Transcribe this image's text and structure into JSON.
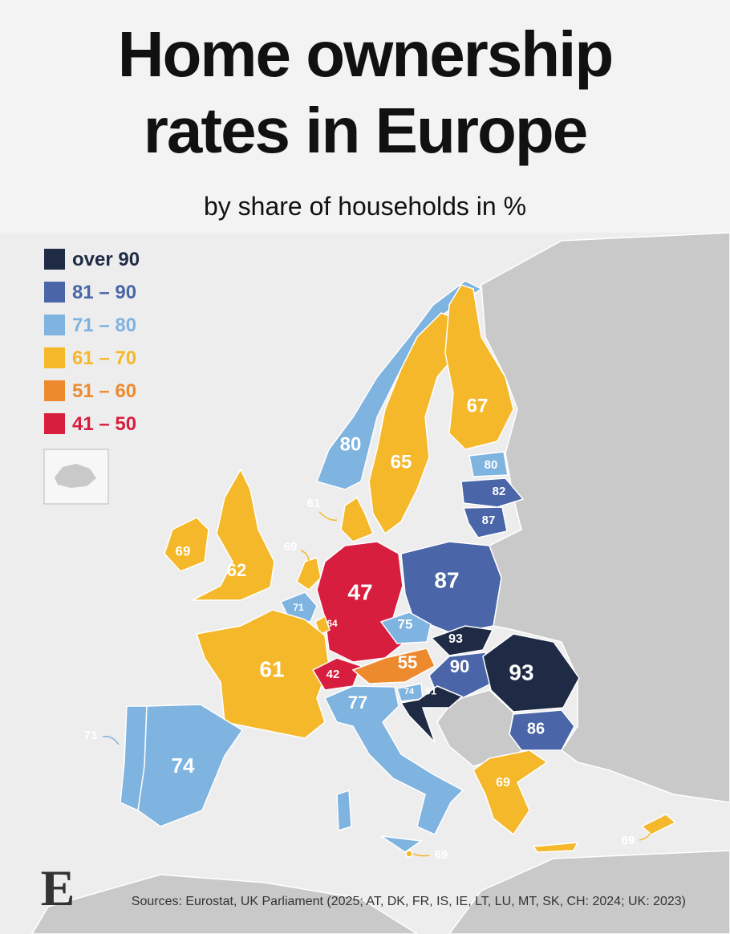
{
  "header": {
    "title_line1": "Home ownership",
    "title_line2": "rates in Europe",
    "subtitle": "by share of households in %"
  },
  "legend": [
    {
      "label": "over 90",
      "color": "#1f2a44"
    },
    {
      "label": "81 – 90",
      "color": "#4a66a8"
    },
    {
      "label": "71 – 80",
      "color": "#7fb3e0"
    },
    {
      "label": "61 – 70",
      "color": "#f4b82a"
    },
    {
      "label": "51 – 60",
      "color": "#ee8a2e"
    },
    {
      "label": "41 – 50",
      "color": "#d81e3f"
    }
  ],
  "map": {
    "labels": [
      {
        "value": 80,
        "color": "#7fb3e0"
      },
      {
        "value": 65,
        "color": "#f4b82a"
      },
      {
        "value": 67,
        "color": "#f4b82a"
      },
      {
        "value": 80,
        "color": "#7fb3e0"
      },
      {
        "value": 82,
        "color": "#4a66a8"
      },
      {
        "value": 87,
        "color": "#4a66a8"
      },
      {
        "value": 61,
        "color": "#f4b82a"
      },
      {
        "value": 69,
        "color": "#f4b82a"
      },
      {
        "value": 62,
        "color": "#f4b82a"
      },
      {
        "value": 69,
        "color": "#f4b82a"
      },
      {
        "value": 47,
        "color": "#d81e3f"
      },
      {
        "value": 87,
        "color": "#4a66a8"
      },
      {
        "value": 71,
        "color": "#7fb3e0"
      },
      {
        "value": 64,
        "color": "#f4b82a"
      },
      {
        "value": 75,
        "color": "#7fb3e0"
      },
      {
        "value": 93,
        "color": "#1f2a44"
      },
      {
        "value": 61,
        "color": "#f4b82a"
      },
      {
        "value": 42,
        "color": "#d81e3f"
      },
      {
        "value": 55,
        "color": "#ee8a2e"
      },
      {
        "value": 90,
        "color": "#4a66a8"
      },
      {
        "value": 93,
        "color": "#1f2a44"
      },
      {
        "value": 74,
        "color": "#7fb3e0"
      },
      {
        "value": 91,
        "color": "#1f2a44"
      },
      {
        "value": 77,
        "color": "#7fb3e0"
      },
      {
        "value": 86,
        "color": "#4a66a8"
      },
      {
        "value": 71,
        "color": "#7fb3e0"
      },
      {
        "value": 74,
        "color": "#7fb3e0"
      },
      {
        "value": 69,
        "color": "#f4b82a"
      },
      {
        "value": 69,
        "color": "#f4b82a"
      },
      {
        "value": 69,
        "color": "#f4b82a"
      }
    ]
  },
  "footer": {
    "logo": "E",
    "sources": "Sources: Eurostat, UK Parliament (2025; AT, DK, FR, IS, IE, LT, LU, MT, SK, CH: 2024; UK: 2023)"
  }
}
